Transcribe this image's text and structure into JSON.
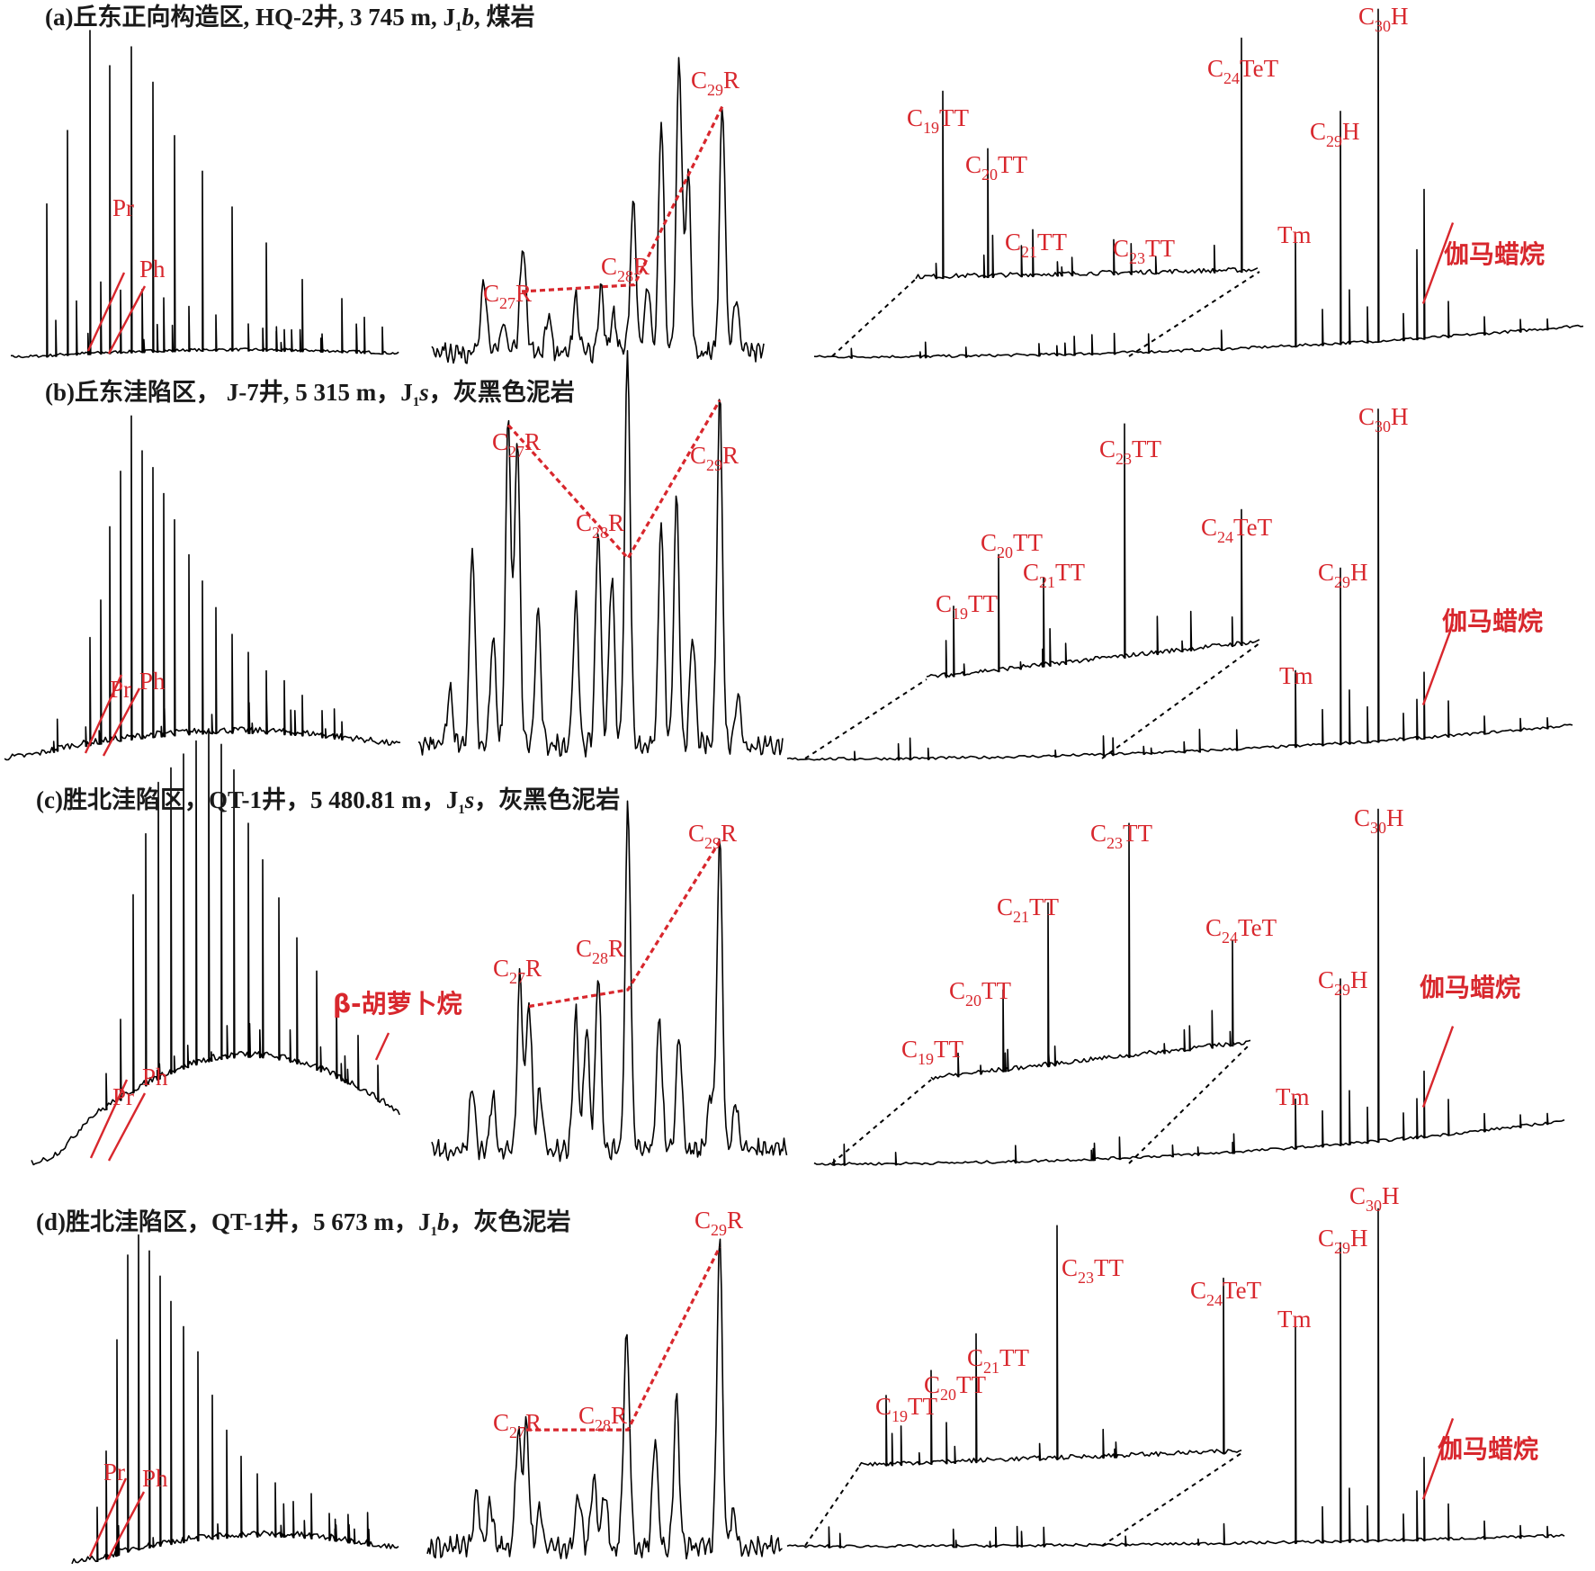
{
  "figure": {
    "panels": [
      {
        "id": "a",
        "title_parts": [
          "(a)丘东正向构造区, HQ-2井, 3 745 m, J",
          "1",
          "b",
          ", 煤岩"
        ]
      },
      {
        "id": "b",
        "title_parts": [
          "(b)丘东洼陷区， J-7井, 5 315 m，J",
          "1",
          "s",
          "，灰黑色泥岩"
        ]
      },
      {
        "id": "c",
        "title_parts": [
          "(c)胜北洼陷区，QT-1井，5 480.81 m，J",
          "1",
          "s",
          "，灰黑色泥岩"
        ]
      },
      {
        "id": "d",
        "title_parts": [
          "(d)胜北洼陷区，QT-1井，5 673 m，J",
          "1",
          "b",
          "，灰色泥岩"
        ]
      }
    ]
  },
  "labels": {
    "pr": "Pr",
    "ph": "Ph",
    "c": "C",
    "r": "R",
    "h": "H",
    "tt": "TT",
    "tet": "TeT",
    "tm": "Tm",
    "n27": "27",
    "n28": "28",
    "n29": "29",
    "n30": "30",
    "n19": "19",
    "n20": "20",
    "n21": "21",
    "n23": "23",
    "n24": "24",
    "gammacerane": "伽马蜡烷",
    "carotane": "β-胡萝卜烷"
  },
  "colors": {
    "label_red": "#d8272d",
    "trace": "#000000"
  },
  "chart_data": [
    {
      "panel": "a",
      "type": "line",
      "sterane_relative_abundance": {
        "C27R": 0.2,
        "C28R": 0.22,
        "C29R": 0.88
      },
      "tricyclic_relative_abundance": {
        "C19TT": 0.8,
        "C20TT": 0.55,
        "C21TT": 0.2,
        "C23TT": 0.15,
        "C24TeT": 1.0
      },
      "hopane_relative_abundance": {
        "Tm": 0.33,
        "C29H": 0.7,
        "C30H": 1.0,
        "gammacerane": 0.45
      }
    },
    {
      "panel": "b",
      "type": "line",
      "sterane_relative_abundance": {
        "C27R": 0.98,
        "C28R": 0.58,
        "C29R": 0.97
      },
      "tricyclic_relative_abundance": {
        "C19TT": 0.3,
        "C20TT": 0.5,
        "C21TT": 0.38,
        "C23TT": 1.0,
        "C24TeT": 0.58
      },
      "hopane_relative_abundance": {
        "Tm": 0.23,
        "C29H": 0.53,
        "C30H": 1.0,
        "gammacerane": 0.2
      }
    },
    {
      "panel": "c",
      "type": "line",
      "sterane_relative_abundance": {
        "C27R": 0.45,
        "C28R": 0.5,
        "C29R": 1.0
      },
      "tricyclic_relative_abundance": {
        "C19TT": 0.1,
        "C20TT": 0.35,
        "C21TT": 0.7,
        "C23TT": 1.0,
        "C24TeT": 0.45
      },
      "hopane_relative_abundance": {
        "Tm": 0.15,
        "C29H": 0.5,
        "C30H": 1.0,
        "gammacerane": 0.2
      }
    },
    {
      "panel": "d",
      "type": "line",
      "sterane_relative_abundance": {
        "C27R": 0.37,
        "C28R": 0.37,
        "C29R": 1.0
      },
      "tricyclic_relative_abundance": {
        "C19TT": 0.3,
        "C20TT": 0.4,
        "C21TT": 0.55,
        "C23TT": 1.0,
        "C24TeT": 0.75
      },
      "hopane_relative_abundance": {
        "Tm": 0.65,
        "C29H": 0.9,
        "C30H": 1.0,
        "gammacerane": 0.25
      }
    }
  ]
}
